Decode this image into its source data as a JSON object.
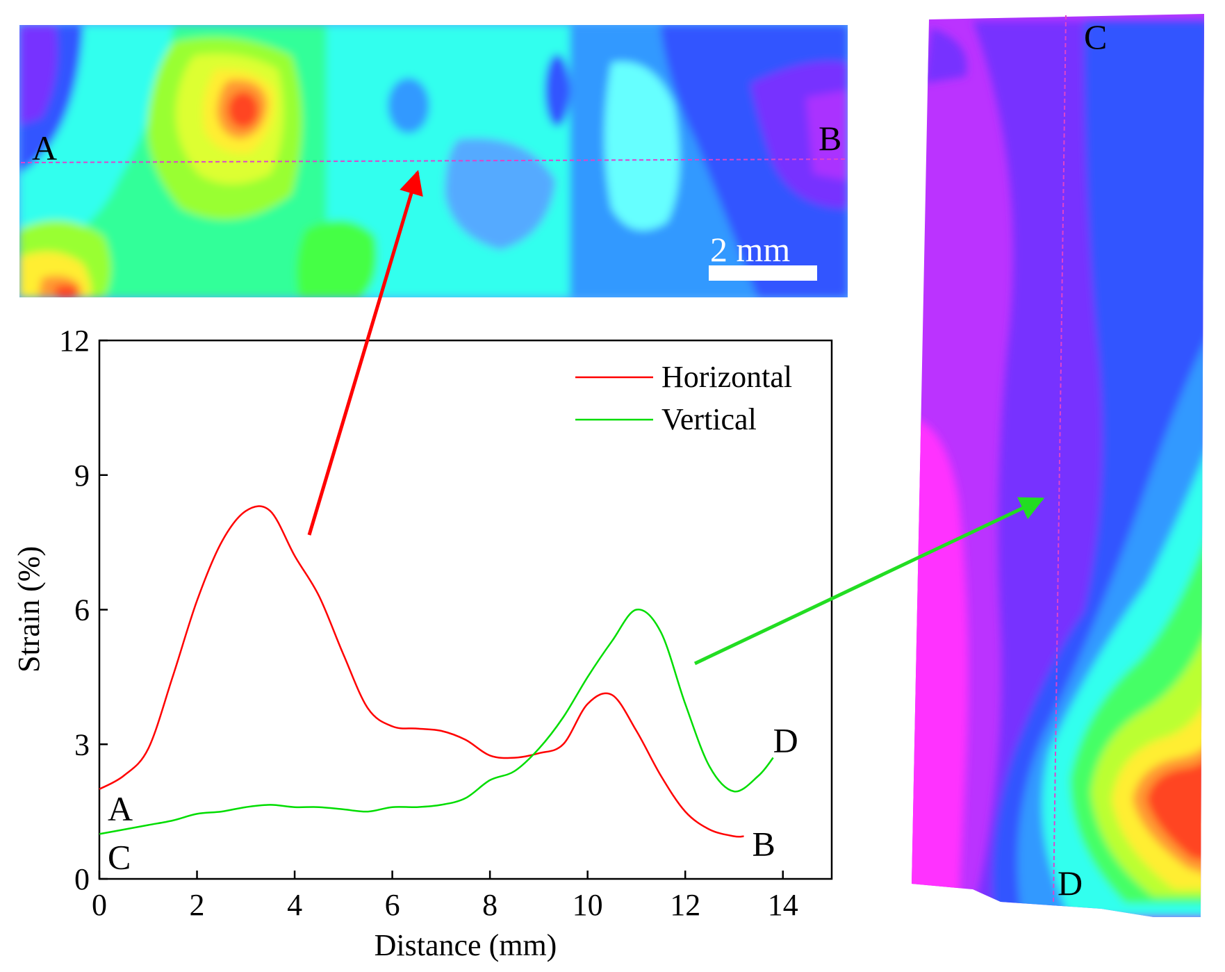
{
  "colors": {
    "horizontal": "#ff0000",
    "vertical": "#00dd00",
    "axis": "#000000",
    "guide_line": "#dd44cc",
    "red_arrow": "#ff0000",
    "green_arrow": "#22dd22"
  },
  "maps": {
    "horizontal_map": {
      "start_label": "A",
      "end_label": "B",
      "scale_bar_label": "2 mm"
    },
    "vertical_map": {
      "start_label": "C",
      "end_label": "D"
    }
  },
  "chart_data": {
    "type": "line",
    "title": "",
    "xlabel": "Distance (mm)",
    "ylabel": "Strain (%)",
    "xlim": [
      0,
      15
    ],
    "ylim": [
      0,
      12
    ],
    "xticks": [
      0,
      2,
      4,
      6,
      8,
      10,
      12,
      14
    ],
    "yticks": [
      0,
      3,
      6,
      9,
      12
    ],
    "legend_position": "top-right",
    "series": [
      {
        "name": "Horizontal",
        "color_key": "horizontal",
        "start_label": "A",
        "end_label": "B",
        "x": [
          0,
          0.5,
          1,
          1.5,
          2,
          2.5,
          3,
          3.5,
          4,
          4.5,
          5,
          5.5,
          6,
          6.5,
          7,
          7.5,
          8,
          8.5,
          9,
          9.5,
          10,
          10.5,
          11,
          11.5,
          12,
          12.5,
          13,
          13.2
        ],
        "y": [
          2.0,
          2.3,
          2.9,
          4.5,
          6.2,
          7.5,
          8.2,
          8.2,
          7.2,
          6.3,
          5.0,
          3.8,
          3.4,
          3.35,
          3.3,
          3.1,
          2.75,
          2.7,
          2.8,
          3.0,
          3.9,
          4.1,
          3.3,
          2.3,
          1.5,
          1.1,
          0.95,
          0.95
        ]
      },
      {
        "name": "Vertical",
        "color_key": "vertical",
        "start_label": "C",
        "end_label": "D",
        "x": [
          0,
          0.5,
          1,
          1.5,
          2,
          2.5,
          3,
          3.5,
          4,
          4.5,
          5,
          5.5,
          6,
          6.5,
          7,
          7.5,
          8,
          8.5,
          9,
          9.5,
          10,
          10.5,
          11,
          11.5,
          12,
          12.5,
          13,
          13.5,
          13.8
        ],
        "y": [
          1.0,
          1.1,
          1.2,
          1.3,
          1.45,
          1.5,
          1.6,
          1.65,
          1.6,
          1.6,
          1.55,
          1.5,
          1.6,
          1.6,
          1.65,
          1.8,
          2.2,
          2.4,
          2.9,
          3.6,
          4.5,
          5.3,
          6.0,
          5.5,
          3.9,
          2.5,
          1.95,
          2.3,
          2.7
        ]
      }
    ]
  }
}
